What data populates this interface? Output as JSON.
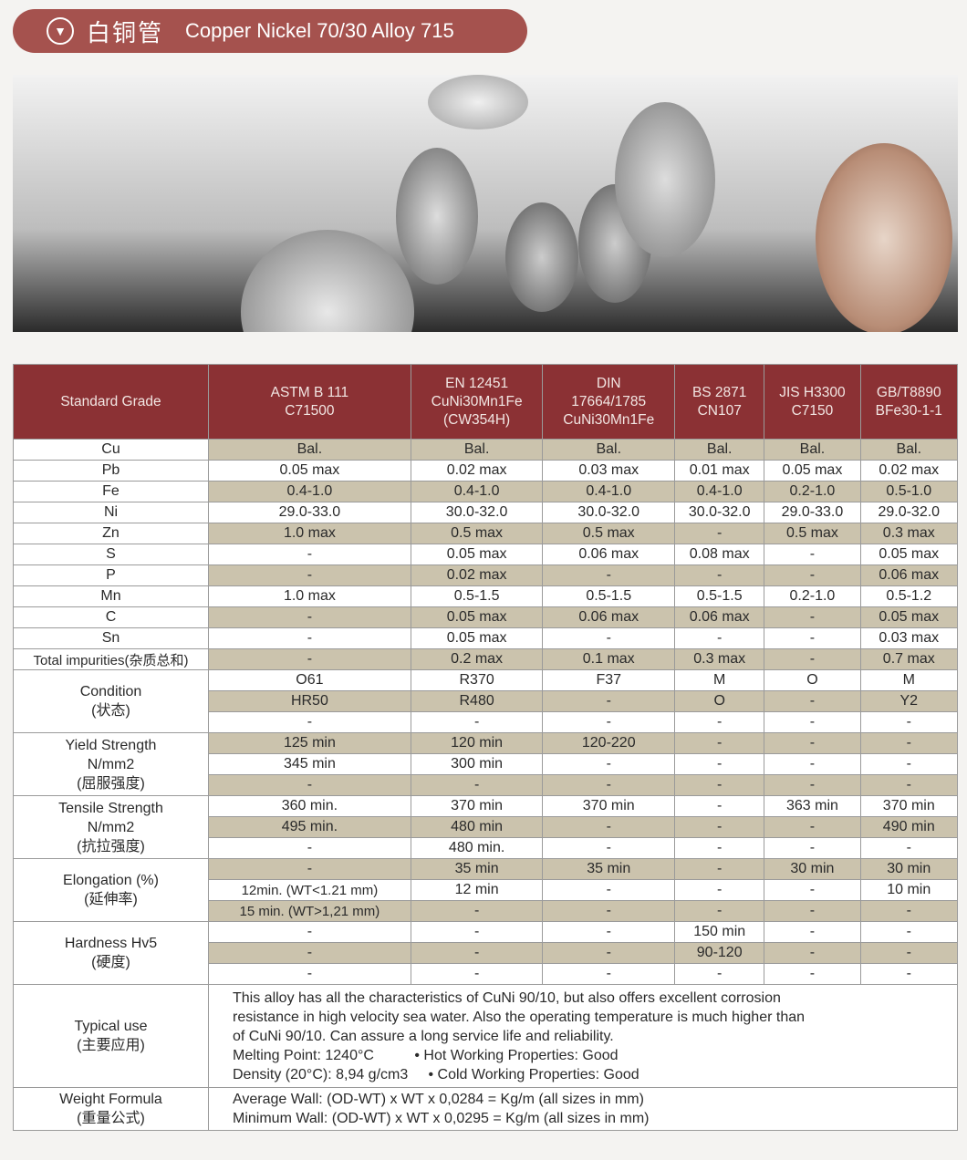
{
  "banner": {
    "icon": "chevron-down-circle-icon",
    "title_cn": "白铜管",
    "title_en": "Copper Nickel 70/30  Alloy 715"
  },
  "header": [
    "Standard Grade",
    "ASTM B 111\nC71500",
    "EN 12451\nCuNi30Mn1Fe\n(CW354H)",
    "DIN\n17664/1785\nCuNi30Mn1Fe",
    "BS 2871\nCN107",
    "JIS H3300\nC7150",
    "GB/T8890\nBFe30-1-1"
  ],
  "composition": [
    {
      "label": "Cu",
      "values": [
        "Bal.",
        "Bal.",
        "Bal.",
        "Bal.",
        "Bal.",
        "Bal."
      ]
    },
    {
      "label": "Pb",
      "values": [
        "0.05 max",
        "0.02 max",
        "0.03 max",
        "0.01 max",
        "0.05 max",
        "0.02 max"
      ]
    },
    {
      "label": "Fe",
      "values": [
        "0.4-1.0",
        "0.4-1.0",
        "0.4-1.0",
        "0.4-1.0",
        "0.2-1.0",
        "0.5-1.0"
      ]
    },
    {
      "label": "Ni",
      "values": [
        "29.0-33.0",
        "30.0-32.0",
        "30.0-32.0",
        "30.0-32.0",
        "29.0-33.0",
        "29.0-32.0"
      ]
    },
    {
      "label": "Zn",
      "values": [
        "1.0 max",
        "0.5 max",
        "0.5 max",
        "-",
        "0.5 max",
        "0.3 max"
      ]
    },
    {
      "label": "S",
      "values": [
        "-",
        "0.05 max",
        "0.06 max",
        "0.08 max",
        "-",
        "0.05 max"
      ]
    },
    {
      "label": "P",
      "values": [
        "-",
        "0.02 max",
        "-",
        "-",
        "-",
        "0.06 max"
      ]
    },
    {
      "label": "Mn",
      "values": [
        "1.0 max",
        "0.5-1.5",
        "0.5-1.5",
        "0.5-1.5",
        "0.2-1.0",
        "0.5-1.2"
      ]
    },
    {
      "label": "C",
      "values": [
        "-",
        "0.05 max",
        "0.06 max",
        "0.06 max",
        "-",
        "0.05 max"
      ]
    },
    {
      "label": "Sn",
      "values": [
        "-",
        "0.05 max",
        "-",
        "-",
        "-",
        "0.03 max"
      ]
    },
    {
      "label": "Total impurities(杂质总和)",
      "values": [
        "-",
        "0.2 max",
        "0.1 max",
        "0.3 max",
        "-",
        "0.7 max"
      ]
    }
  ],
  "properties": [
    {
      "label": "Condition\n(状态)",
      "first_shaded": false,
      "rows": [
        [
          "O61",
          "R370",
          "F37",
          "M",
          "O",
          "M"
        ],
        [
          "HR50",
          "R480",
          "-",
          "O",
          "-",
          "Y2"
        ],
        [
          "-",
          "-",
          "-",
          "-",
          "-",
          "-"
        ]
      ]
    },
    {
      "label": "Yield Strength\nN/mm2\n(屈服强度)",
      "first_shaded": true,
      "rows": [
        [
          "125 min",
          "120 min",
          "120-220",
          "-",
          "-",
          "-"
        ],
        [
          "345 min",
          "300 min",
          "-",
          "-",
          "-",
          "-"
        ],
        [
          "-",
          "-",
          "-",
          "-",
          "-",
          "-"
        ]
      ]
    },
    {
      "label": "Tensile Strength\nN/mm2\n(抗拉强度)",
      "first_shaded": false,
      "rows": [
        [
          "360 min.",
          "370 min",
          "370 min",
          "-",
          "363 min",
          "370 min"
        ],
        [
          "495 min.",
          "480 min",
          "-",
          "-",
          "-",
          "490 min"
        ],
        [
          "-",
          "480 min.",
          "-",
          "-",
          "-",
          "-"
        ]
      ]
    },
    {
      "label": "Elongation (%)\n(延伸率)",
      "first_shaded": true,
      "rows": [
        [
          "-",
          "35 min",
          "35 min",
          "-",
          "30 min",
          "30 min"
        ],
        [
          "12min. (WT<1.21 mm)",
          "12 min",
          "-",
          "-",
          "-",
          "10 min"
        ],
        [
          "15 min. (WT>1,21 mm)",
          "-",
          "-",
          "-",
          "-",
          "-"
        ]
      ]
    },
    {
      "label": "Hardness Hv5\n(硬度)",
      "first_shaded": false,
      "rows": [
        [
          "-",
          "-",
          "-",
          "150 min",
          "-",
          "-"
        ],
        [
          "-",
          "-",
          "-",
          "90-120",
          "-",
          "-"
        ],
        [
          "-",
          "-",
          "-",
          "-",
          "-",
          "-"
        ]
      ]
    }
  ],
  "typical_use": {
    "label": "Typical use\n(主要应用)",
    "lines": [
      "This alloy has all the characteristics of CuNi 90/10, but also offers excellent corrosion",
      "resistance in high velocity sea water. Also the operating temperature is much higher than",
      "of CuNi 90/10. Can assure a long service life and reliability.",
      "Melting Point: 1240°C          • Hot Working Properties: Good",
      "Density (20°C): 8,94 g/cm3     • Cold Working Properties: Good"
    ]
  },
  "weight_formula": {
    "label": "Weight Formula\n(重量公式)",
    "lines": [
      "Average Wall: (OD-WT) x WT x 0,0284 = Kg/m (all sizes in mm)",
      "Minimum Wall: (OD-WT) x WT x 0,0295 = Kg/m (all sizes in mm)"
    ]
  }
}
